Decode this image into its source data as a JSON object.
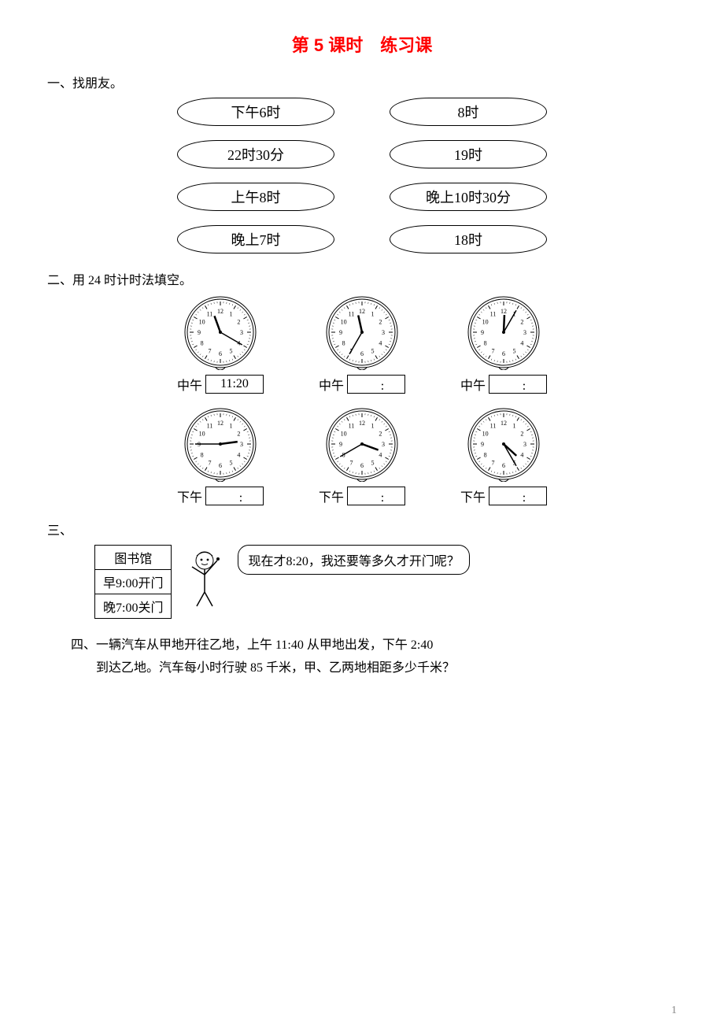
{
  "title": "第 5 课时　练习课",
  "q1": {
    "label": "一、找朋友。",
    "left": [
      "下午6时",
      "22时30分",
      "上午8时",
      "晚上7时"
    ],
    "right": [
      "8时",
      "19时",
      "晚上10时30分",
      "18时"
    ]
  },
  "q2": {
    "label": "二、用 24 时计时法填空。",
    "clocks": [
      {
        "hour": 11,
        "minute": 20,
        "prefix": "中午",
        "box": "11:20"
      },
      {
        "hour": 11,
        "minute": 35,
        "prefix": "中午",
        "box": "　:　"
      },
      {
        "hour": 12,
        "minute": 5,
        "prefix": "中午",
        "box": "　:　"
      },
      {
        "hour": 2,
        "minute": 45,
        "prefix": "下午",
        "box": "　:　"
      },
      {
        "hour": 3,
        "minute": 40,
        "prefix": "下午",
        "box": "　:　"
      },
      {
        "hour": 4,
        "minute": 25,
        "prefix": "下午",
        "box": "　:　"
      }
    ],
    "clock_style": {
      "face_fill": "#ffffff",
      "stroke": "#000000",
      "radius": 42,
      "tick_count": 12
    }
  },
  "q3": {
    "label": "三、",
    "sign": [
      "图书馆",
      "早9:00开门",
      "晚7:00关门"
    ],
    "bubble": "现在才8:20，我还要等多久才开门呢？"
  },
  "q4": {
    "label": "四、",
    "lines": [
      "一辆汽车从甲地开往乙地，上午 11:40 从甲地出发，下午 2:40",
      "到达乙地。汽车每小时行驶 85 千米，甲、乙两地相距多少千米？"
    ]
  },
  "page_number": "1",
  "colors": {
    "title": "#ff0000",
    "text": "#000000",
    "bg": "#ffffff"
  }
}
